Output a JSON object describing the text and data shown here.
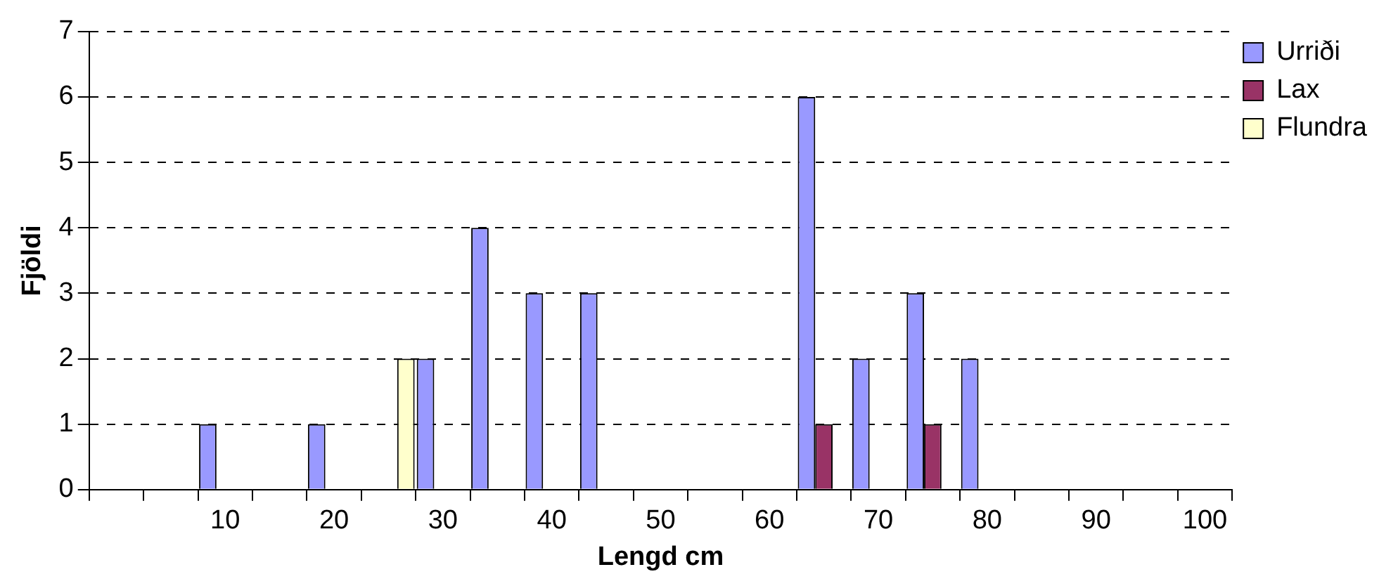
{
  "chart_data": {
    "type": "bar",
    "xlabel": "Lengd cm",
    "ylabel": "Fjöldi",
    "categories": [
      null,
      null,
      "10",
      null,
      "20",
      null,
      "30",
      null,
      "40",
      null,
      "50",
      null,
      "60",
      null,
      "70",
      null,
      "80",
      null,
      "90",
      null,
      "100"
    ],
    "series": [
      {
        "name": "Urriði",
        "color": "#9999ff",
        "values": [
          0,
          0,
          1,
          0,
          1,
          0,
          2,
          4,
          3,
          3,
          0,
          0,
          0,
          6,
          2,
          3,
          2,
          0,
          0,
          0,
          0
        ]
      },
      {
        "name": "Lax",
        "color": "#993366",
        "values": [
          0,
          0,
          0,
          0,
          0,
          0,
          0,
          0,
          0,
          0,
          0,
          0,
          0,
          1,
          0,
          1,
          0,
          0,
          0,
          0,
          0
        ]
      },
      {
        "name": "Flundra",
        "color": "#ffffcc",
        "values": [
          0,
          0,
          0,
          0,
          0,
          2,
          0,
          0,
          0,
          0,
          0,
          0,
          0,
          0,
          0,
          0,
          0,
          0,
          0,
          0,
          0
        ]
      }
    ],
    "ylim": [
      0,
      7
    ],
    "yticks": [
      0,
      1,
      2,
      3,
      4,
      5,
      6,
      7
    ],
    "grid": "y",
    "legend": "top right"
  }
}
